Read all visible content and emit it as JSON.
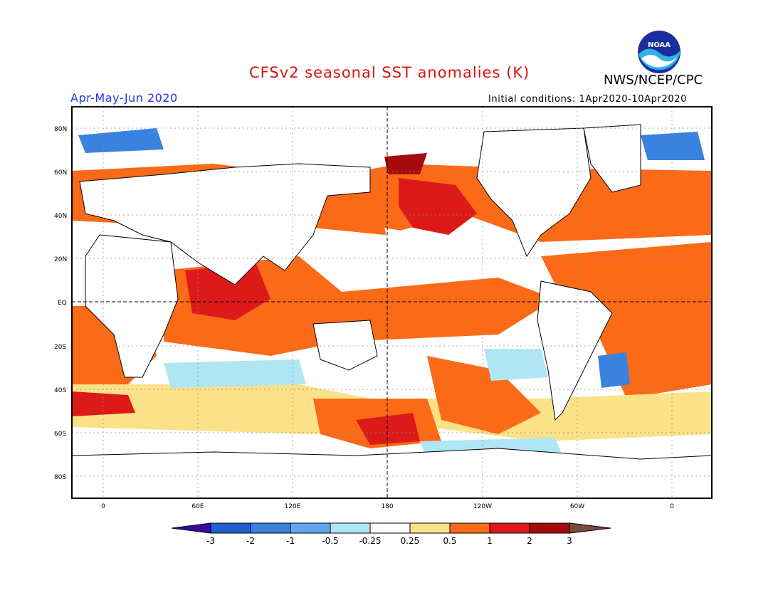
{
  "title": "CFSv2 seasonal SST anomalies (K)",
  "title_color": "#dd1111",
  "period": "Apr-May-Jun 2020",
  "period_color": "#2233ee",
  "agency": "NWS/NCEP/CPC",
  "initial_conditions": "Initial conditions: 1Apr2020-10Apr2020",
  "logo": {
    "text": "NOAA",
    "icon": "noaa-logo-icon"
  },
  "map": {
    "lat_labels": [
      "80N",
      "60N",
      "40N",
      "20N",
      "EQ",
      "20S",
      "40S",
      "60S",
      "80S"
    ],
    "lon_labels": [
      "0",
      "60E",
      "120E",
      "180",
      "120W",
      "60W",
      "0"
    ]
  },
  "colorbar": {
    "labels": [
      "-3",
      "-2",
      "-1",
      "-0.5",
      "-0.25",
      "0.25",
      "0.5",
      "1",
      "2",
      "3"
    ],
    "colors": [
      "#3a0a9a",
      "#1f5fcf",
      "#3a82e0",
      "#62a7ee",
      "#aee6f3",
      "#ffffff",
      "#fbe188",
      "#fb6a17",
      "#dd1a1a",
      "#a60b0b",
      "#7c4a3a"
    ]
  }
}
